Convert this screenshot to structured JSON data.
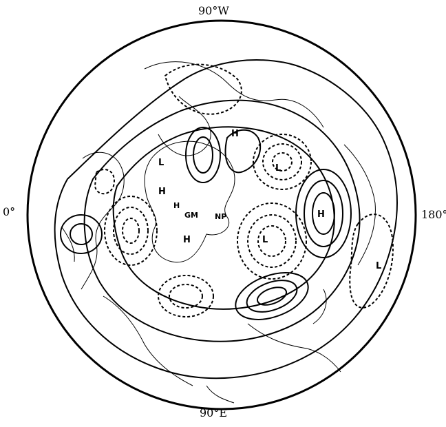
{
  "map": {
    "projection": "polar stereographic (Northern Hemisphere)",
    "meridian_labels": {
      "top": "90°W",
      "bottom": "90°E",
      "left": "0°",
      "right": "180°"
    },
    "centers": [
      {
        "id": "h-greenland",
        "label": "H"
      },
      {
        "id": "h-arctic-canada",
        "label": "H"
      },
      {
        "id": "h-west-siberia",
        "label": "H"
      },
      {
        "id": "h-pacific",
        "label": "H"
      },
      {
        "id": "l-east-siberia",
        "label": "L"
      },
      {
        "id": "l-west-pacific",
        "label": "L"
      },
      {
        "id": "l-north-pacific",
        "label": "L"
      },
      {
        "id": "l-asia-small",
        "label": "L"
      }
    ],
    "site_labels": {
      "gm": "GM",
      "np": "NP",
      "h_small": "H"
    },
    "contour_styles": {
      "positive": "solid",
      "negative": "dashed"
    },
    "colors": {
      "line": "#000000",
      "background": "#ffffff"
    }
  }
}
